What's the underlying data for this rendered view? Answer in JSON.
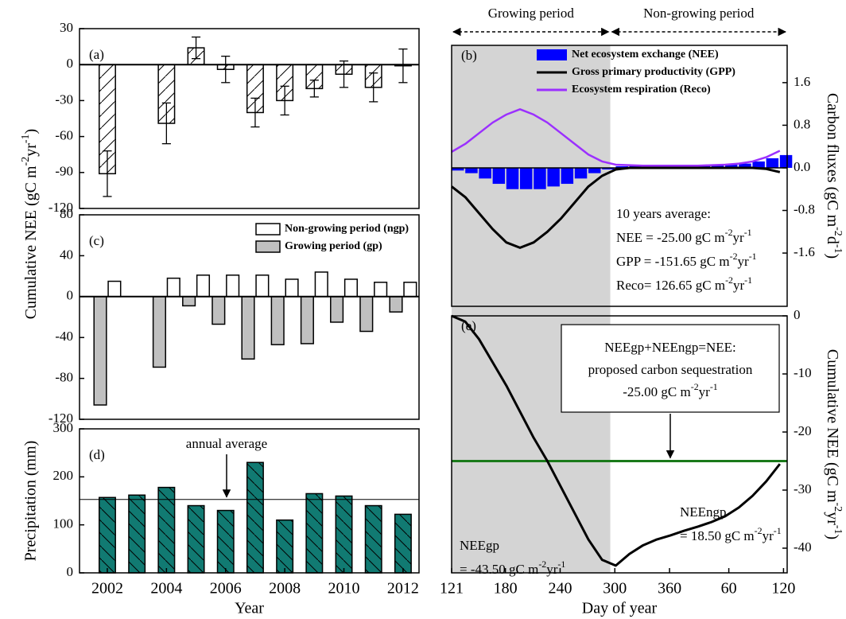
{
  "chart_data": [
    {
      "type": "bar",
      "label": "(a)",
      "x": [
        2002,
        2004,
        2005,
        2006,
        2007,
        2008,
        2009,
        2010,
        2011,
        2012
      ],
      "values": [
        -91,
        -49,
        14,
        -4,
        -40,
        -30,
        -20,
        -8,
        -19,
        -1
      ],
      "errors": [
        19,
        17,
        9,
        11,
        12,
        12,
        7,
        11,
        12,
        14
      ],
      "color": "#ffffff",
      "hatch": "/",
      "xlim": [
        2001.06,
        2012.54
      ],
      "ylim": [
        -120,
        30
      ],
      "yticks": [
        -120,
        -90,
        -60,
        -30,
        0,
        30
      ],
      "ylabel": [
        "Cumulative NEE (gC m",
        "-2",
        "yr",
        "-1",
        ")"
      ]
    },
    {
      "type": "bar",
      "label": "(c)",
      "x": [
        2002,
        2004,
        2005,
        2006,
        2007,
        2008,
        2009,
        2010,
        2011,
        2012
      ],
      "series": [
        {
          "name": "Non-growing period (ngp)",
          "color": "#ffffff",
          "values": [
            15,
            18,
            21,
            21,
            21,
            17,
            24,
            17,
            14,
            14
          ]
        },
        {
          "name": "Growing period (gp)",
          "color": "#c0c0c0",
          "values": [
            -106,
            -69,
            -9,
            -27,
            -61,
            -47,
            -46,
            -25,
            -34,
            -15
          ]
        }
      ],
      "legend": "upper right",
      "xlim": [
        2001.06,
        2012.54
      ],
      "ylim": [
        -120,
        80
      ],
      "yticks": [
        -120,
        -80,
        -40,
        0,
        40,
        80
      ]
    },
    {
      "type": "bar",
      "label": "(d)",
      "x": [
        2002,
        2003,
        2004,
        2005,
        2006,
        2007,
        2008,
        2009,
        2010,
        2011,
        2012
      ],
      "values": [
        157,
        162,
        178,
        140,
        130,
        230,
        110,
        165,
        160,
        140,
        122
      ],
      "color": "#117a72",
      "hatch": "\\",
      "reference_line": 153,
      "annotation": "annual average",
      "xlim": [
        2001.06,
        2012.54
      ],
      "xticks": [
        2002,
        2004,
        2006,
        2008,
        2010,
        2012
      ],
      "ylim": [
        0,
        300
      ],
      "yticks": [
        0,
        100,
        200,
        300
      ],
      "xlabel": "Year",
      "ylabel": "Precipitation (mm)"
    },
    {
      "type": "line",
      "label": "(b)",
      "x": [
        121,
        136,
        151,
        166,
        181,
        196,
        211,
        226,
        241,
        256,
        271,
        286,
        301,
        316,
        331,
        346,
        361,
        376,
        391,
        406,
        421,
        436,
        451,
        466,
        481
      ],
      "series": [
        {
          "name": "Net ecosystem exchange (NEE)",
          "color": "#0000ff",
          "style": "bar",
          "values": [
            -0.05,
            -0.1,
            -0.2,
            -0.3,
            -0.4,
            -0.4,
            -0.4,
            -0.35,
            -0.3,
            -0.2,
            -0.1,
            -0.03,
            0.03,
            0.05,
            0.04,
            0.04,
            0.04,
            0.04,
            0.04,
            0.05,
            0.06,
            0.08,
            0.12,
            0.18,
            0.24
          ]
        },
        {
          "name": "Gross primary productivity (GPP)",
          "color": "#000000",
          "values": [
            -0.35,
            -0.55,
            -0.85,
            -1.15,
            -1.4,
            -1.5,
            -1.4,
            -1.2,
            -0.95,
            -0.65,
            -0.35,
            -0.15,
            -0.03,
            0,
            0,
            0,
            0,
            0,
            0,
            0,
            0,
            0,
            0,
            -0.02,
            -0.08
          ]
        },
        {
          "name": "Ecosystem respiration (Reco)",
          "color": "#9b30ff",
          "values": [
            0.3,
            0.45,
            0.65,
            0.85,
            1.0,
            1.1,
            1.0,
            0.85,
            0.65,
            0.45,
            0.25,
            0.12,
            0.06,
            0.05,
            0.04,
            0.04,
            0.04,
            0.04,
            0.04,
            0.05,
            0.06,
            0.08,
            0.12,
            0.2,
            0.32
          ]
        }
      ],
      "periods": [
        {
          "label": "Growing period",
          "range": [
            121,
            295
          ],
          "color": "#d4d4d4"
        },
        {
          "label": "Non-growing period",
          "range": [
            295,
            489
          ]
        }
      ],
      "xlim": [
        121,
        489
      ],
      "ylim": [
        -2.6,
        2.3
      ],
      "yticks": [
        -1.6,
        -0.8,
        {
          "value": 0,
          "label": "0.0"
        },
        0.8,
        1.6
      ],
      "yaxis": "right",
      "ylabel": [
        "Carbon fluxes (gC m",
        "-2",
        "d",
        "-1",
        ")"
      ],
      "annotations": [
        "10 years average:",
        [
          "NEE = -25.00 gC m",
          "-2",
          "yr",
          "-1"
        ],
        [
          "GPP = -151.65 gC m",
          "-2",
          "yr",
          "-1"
        ],
        [
          "Reco= 126.65 gC m",
          "-2",
          "yr",
          "-1"
        ]
      ]
    },
    {
      "type": "line",
      "label": "(e)",
      "x": [
        121,
        136,
        151,
        166,
        181,
        196,
        211,
        226,
        241,
        256,
        271,
        286,
        301,
        316,
        331,
        346,
        361,
        376,
        391,
        406,
        421,
        436,
        451,
        466,
        481
      ],
      "values": [
        0,
        -1,
        -4,
        -8,
        -12,
        -16.5,
        -21,
        -25,
        -29.5,
        -34,
        -38.5,
        -42,
        -43,
        -41,
        -39.5,
        -38.5,
        -37.8,
        -37,
        -36.3,
        -35.5,
        -34.5,
        -33,
        -31,
        -28.5,
        -25.5
      ],
      "color": "#000000",
      "reference_line": -25,
      "reference_color": "#1a7a1a",
      "xlim": [
        121,
        489
      ],
      "xticks": [
        121,
        180,
        240,
        300,
        360,
        {
          "value": 425,
          "label": "60"
        },
        {
          "value": 485,
          "label": "120"
        }
      ],
      "ylim": [
        -44.25,
        0
      ],
      "yticks": [
        -40,
        -30,
        -20,
        -10,
        0
      ],
      "yaxis": "right",
      "xlabel": "Day of year",
      "ylabel": [
        "Cumulative NEE (gC m",
        "-2",
        "yr",
        "-1",
        ")"
      ],
      "annotations": {
        "box": [
          "NEEgp+NEEngp=NEE:",
          "proposed carbon sequestration",
          [
            "-25.00 gC m",
            "-2",
            "yr",
            "-1"
          ]
        ],
        "ngp": [
          "NEEngp",
          [
            "= 18.50 gC m",
            "-2",
            "yr",
            "-1"
          ]
        ],
        "gp": [
          "NEEgp",
          [
            "= -43.50 gC m",
            "-2",
            "yr",
            "-1"
          ]
        ]
      }
    }
  ]
}
